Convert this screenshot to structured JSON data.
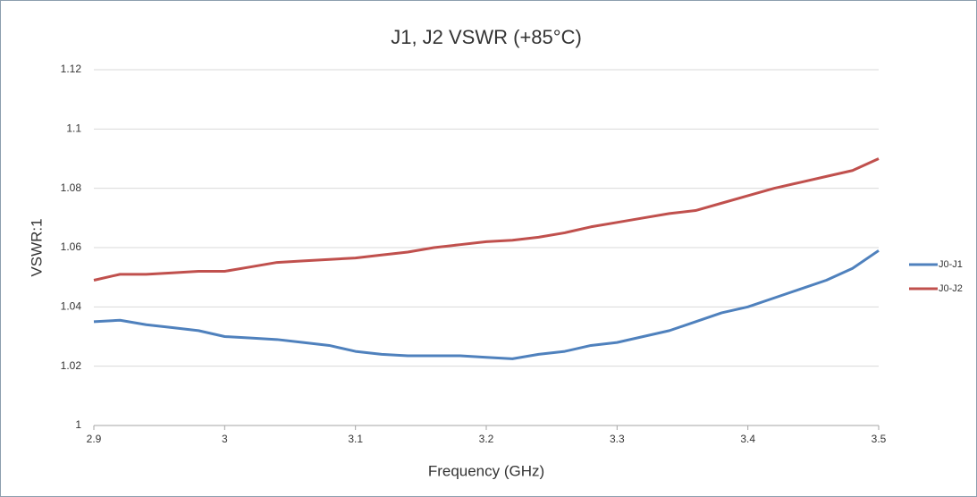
{
  "chart_data": {
    "type": "line",
    "title": "J1, J2 VSWR (+85°C)",
    "x_label": "Frequency (GHz)",
    "y_label": "VSWR:1",
    "x": [
      2.9,
      2.92,
      2.94,
      2.96,
      2.98,
      3.0,
      3.02,
      3.04,
      3.06,
      3.08,
      3.1,
      3.12,
      3.14,
      3.16,
      3.18,
      3.2,
      3.22,
      3.24,
      3.26,
      3.28,
      3.3,
      3.32,
      3.34,
      3.36,
      3.38,
      3.4,
      3.42,
      3.44,
      3.46,
      3.48,
      3.5
    ],
    "series": [
      {
        "name": "J0-J1",
        "color": "#4f81bd",
        "values": [
          1.035,
          1.0355,
          1.034,
          1.033,
          1.032,
          1.03,
          1.0295,
          1.029,
          1.028,
          1.027,
          1.025,
          1.024,
          1.0235,
          1.0235,
          1.0235,
          1.023,
          1.0225,
          1.024,
          1.025,
          1.027,
          1.028,
          1.03,
          1.032,
          1.035,
          1.038,
          1.04,
          1.043,
          1.046,
          1.049,
          1.053,
          1.059
        ]
      },
      {
        "name": "J0-J2",
        "color": "#c0504d",
        "values": [
          1.049,
          1.051,
          1.051,
          1.0515,
          1.052,
          1.052,
          1.0535,
          1.055,
          1.0555,
          1.056,
          1.0565,
          1.0575,
          1.0585,
          1.06,
          1.061,
          1.062,
          1.0625,
          1.0635,
          1.065,
          1.067,
          1.0685,
          1.07,
          1.0715,
          1.0725,
          1.075,
          1.0775,
          1.08,
          1.082,
          1.084,
          1.086,
          1.09
        ]
      }
    ],
    "xlim": [
      2.9,
      3.5
    ],
    "xticks": [
      2.9,
      3,
      3.1,
      3.2,
      3.3,
      3.4,
      3.5
    ],
    "ylim": [
      1,
      1.12
    ],
    "yticks": [
      1,
      1.02,
      1.04,
      1.06,
      1.08,
      1.1,
      1.12
    ],
    "grid": true,
    "legend": "right"
  }
}
